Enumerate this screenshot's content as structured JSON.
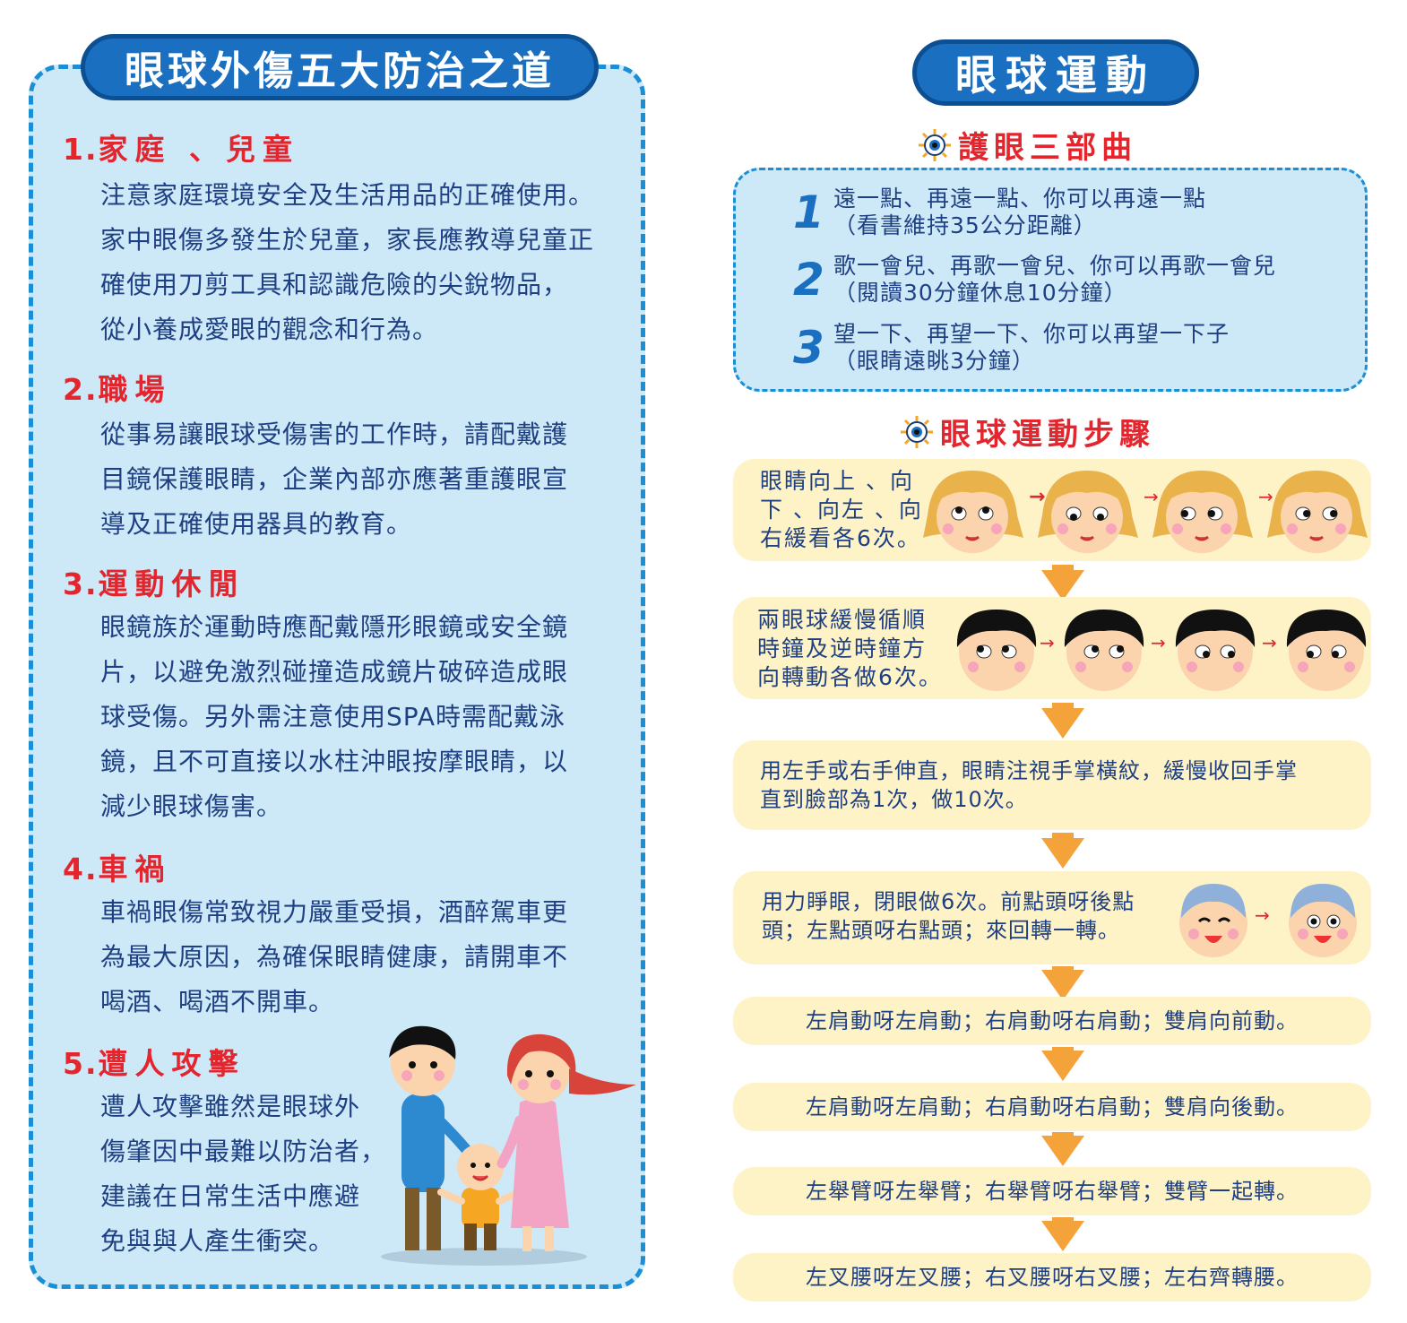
{
  "left": {
    "title": "眼球外傷五大防治之道",
    "sections": [
      {
        "num": "1.",
        "heading": "家庭 、兒童",
        "lines": [
          "注意家庭環境安全及生活用品的正確使用。",
          "家中眼傷多發生於兒童，家長應教導兒童正",
          "確使用刀剪工具和認識危險的尖銳物品，",
          "從小養成愛眼的觀念和行為。"
        ]
      },
      {
        "num": "2.",
        "heading": "職場",
        "lines": [
          "從事易讓眼球受傷害的工作時，請配戴護",
          "目鏡保護眼睛，企業內部亦應著重護眼宣",
          "導及正確使用器具的教育。"
        ]
      },
      {
        "num": "3.",
        "heading": "運動休閒",
        "lines": [
          "眼鏡族於運動時應配戴隱形眼鏡或安全鏡",
          "片，以避免激烈碰撞造成鏡片破碎造成眼",
          "球受傷。另外需注意使用SPA時需配戴泳",
          "鏡，且不可直接以水柱沖眼按摩眼睛，以",
          "減少眼球傷害。"
        ]
      },
      {
        "num": "4.",
        "heading": "車禍",
        "lines": [
          "車禍眼傷常致視力嚴重受損，酒醉駕車更",
          "為最大原因，為確保眼睛健康，請開車不",
          "喝酒、喝酒不開車。"
        ]
      },
      {
        "num": "5.",
        "heading": "遭人攻擊",
        "lines": [
          "遭人攻擊雖然是眼球外",
          "傷肇因中最難以防治者，",
          "建議在日常生活中應避",
          "免與與人產生衝突。"
        ]
      }
    ]
  },
  "right": {
    "title": "眼球運動",
    "song_heading": "護眼三部曲",
    "song": [
      {
        "num": "1",
        "line1": "遠一點、再遠一點、你可以再遠一點",
        "line2": "（看書維持35公分距離）"
      },
      {
        "num": "2",
        "line1": "歌一會兒、再歌一會兒、你可以再歌一會兒",
        "line2": "（閱讀30分鐘休息10分鐘）"
      },
      {
        "num": "3",
        "line1": "望一下、再望一下、你可以再望一下子",
        "line2": "（眼睛遠眺3分鐘）"
      }
    ],
    "steps_heading": "眼球運動步驟",
    "steps": [
      {
        "lines": [
          "眼睛向上 、向",
          "下 、向左 、向",
          "右緩看各6次。"
        ]
      },
      {
        "lines": [
          "兩眼球緩慢循順",
          "時鐘及逆時鐘方",
          "向轉動各做6次。"
        ]
      },
      {
        "lines": [
          "用左手或右手伸直，眼睛注視手掌橫紋，緩慢收回手掌",
          "直到臉部為1次，做10次。"
        ]
      },
      {
        "lines": [
          "用力睜眼，閉眼做6次。前點頭呀後點",
          "頭；左點頭呀右點頭；來回轉一轉。"
        ]
      },
      {
        "lines": [
          "左肩動呀左肩動；右肩動呀右肩動；雙肩向前動。"
        ]
      },
      {
        "lines": [
          "左肩動呀左肩動；右肩動呀右肩動；雙肩向後動。"
        ]
      },
      {
        "lines": [
          "左舉臂呀左舉臂；右舉臂呀右舉臂；雙臂一起轉。"
        ]
      },
      {
        "lines": [
          "左叉腰呀左叉腰；右叉腰呀右叉腰；左右齊轉腰。"
        ]
      }
    ]
  },
  "colors": {
    "accent_blue": "#1a6fc0",
    "heading_red": "#e3252d",
    "panel_blue": "#cde9f8",
    "step_yellow": "#fdf3c6",
    "arrow_orange": "#f4a23a"
  }
}
